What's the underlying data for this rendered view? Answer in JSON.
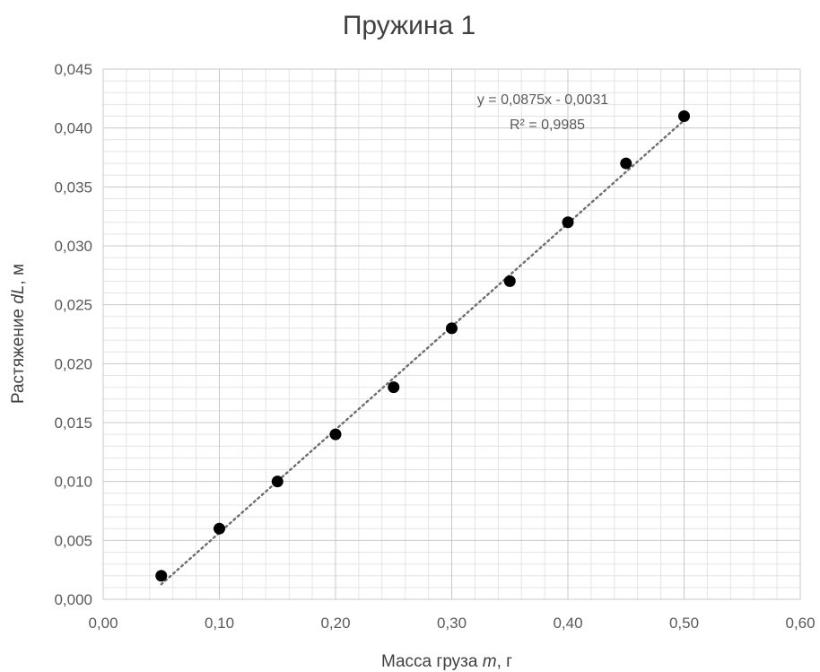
{
  "chart_data": {
    "type": "scatter",
    "title": "Пружина 1",
    "xlabel_prefix": "Масса груза ",
    "xlabel_var": "m",
    "xlabel_suffix": ", г",
    "ylabel_prefix": "Растяжение ",
    "ylabel_var": "dL",
    "ylabel_suffix": ", м",
    "xlim": [
      0,
      0.6
    ],
    "ylim": [
      0,
      0.045
    ],
    "x_major_step": 0.1,
    "y_major_step": 0.005,
    "x_minor_step": 0.02,
    "y_minor_step": 0.001,
    "x_ticks": [
      "0,00",
      "0,10",
      "0,20",
      "0,30",
      "0,40",
      "0,50",
      "0,60"
    ],
    "y_ticks": [
      "0,000",
      "0,005",
      "0,010",
      "0,015",
      "0,020",
      "0,025",
      "0,030",
      "0,035",
      "0,040",
      "0,045"
    ],
    "grid": true,
    "series": [
      {
        "x": [
          0.05,
          0.1,
          0.15,
          0.2,
          0.25,
          0.3,
          0.35,
          0.4,
          0.45,
          0.5
        ],
        "y": [
          0.002,
          0.006,
          0.01,
          0.014,
          0.018,
          0.023,
          0.027,
          0.032,
          0.037,
          0.041
        ],
        "color": "#000000"
      }
    ],
    "trendline": {
      "type": "linear",
      "slope": 0.0875,
      "intercept": -0.0031,
      "x_range": [
        0.05,
        0.5
      ],
      "color": "#6e6e6e",
      "equation": "y = 0,0875x - 0,0031",
      "r2": "R² = 0,9985"
    }
  }
}
